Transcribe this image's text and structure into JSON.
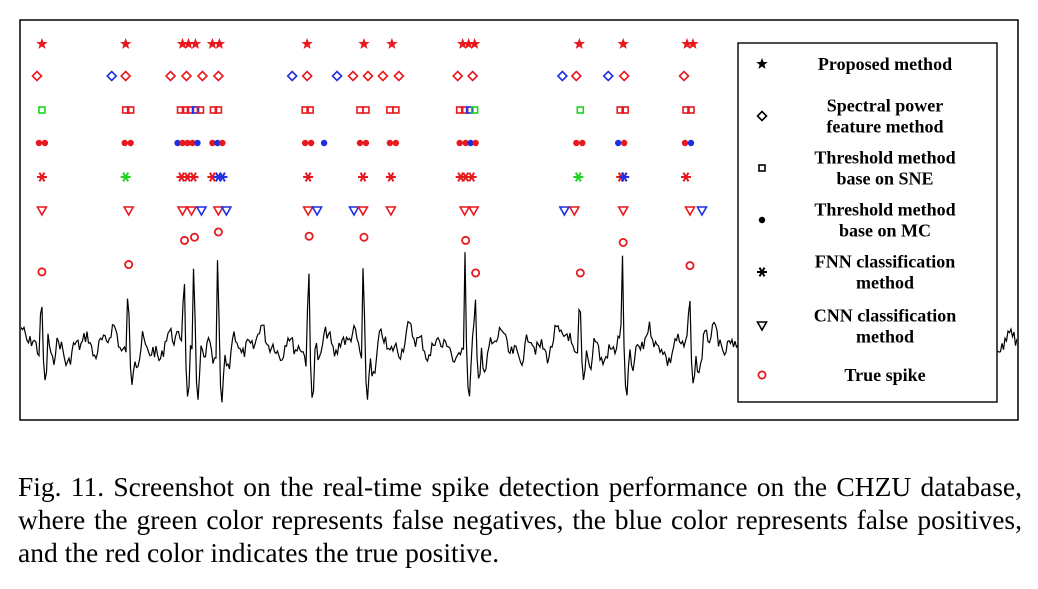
{
  "caption": "Fig. 11.   Screenshot on the real-time spike detection performance on the CHZU database, where the green color represents false negatives, the blue color represents false positives, and the red color indicates the true positive.",
  "colors": {
    "true_positive": "#e8191e",
    "false_positive": "#1f2ee0",
    "false_negative": "#1fd21f",
    "signal": "#000000",
    "true_spike": "#e8191e"
  },
  "chart_data": {
    "type": "scatter",
    "x_unit": "sample index",
    "xlim": [
      0,
      1000
    ],
    "legend_position": "right",
    "legend": [
      {
        "label": "Proposed method",
        "marker": "star"
      },
      {
        "label": "Spectral power feature method",
        "marker": "diamond"
      },
      {
        "label": "Threshold method base on SNE",
        "marker": "square"
      },
      {
        "label": "Threshold method base on MC",
        "marker": "dot"
      },
      {
        "label": "FNN classification method",
        "marker": "asterisk"
      },
      {
        "label": "CNN classification method",
        "marker": "triangle-down"
      },
      {
        "label": "True spike",
        "marker": "circle"
      }
    ],
    "true_spikes": [
      {
        "x": 21,
        "amp": 0.62
      },
      {
        "x": 108,
        "amp": 0.69
      },
      {
        "x": 164,
        "amp": 0.92
      },
      {
        "x": 174,
        "amp": 0.95
      },
      {
        "x": 198,
        "amp": 1.0
      },
      {
        "x": 289,
        "amp": 0.96
      },
      {
        "x": 344,
        "amp": 0.95
      },
      {
        "x": 446,
        "amp": 0.92
      },
      {
        "x": 456,
        "amp": 0.61
      },
      {
        "x": 561,
        "amp": 0.61
      },
      {
        "x": 604,
        "amp": 0.9
      },
      {
        "x": 671,
        "amp": 0.68
      }
    ],
    "series": [
      {
        "name": "Proposed method",
        "marker": "star",
        "detections": [
          {
            "x": 21,
            "c": "tp"
          },
          {
            "x": 105,
            "c": "tp"
          },
          {
            "x": 162,
            "c": "tp"
          },
          {
            "x": 168,
            "c": "tp"
          },
          {
            "x": 175,
            "c": "tp"
          },
          {
            "x": 192,
            "c": "tp"
          },
          {
            "x": 199,
            "c": "tp"
          },
          {
            "x": 287,
            "c": "tp"
          },
          {
            "x": 344,
            "c": "tp"
          },
          {
            "x": 372,
            "c": "tp"
          },
          {
            "x": 443,
            "c": "tp"
          },
          {
            "x": 449,
            "c": "tp"
          },
          {
            "x": 455,
            "c": "tp"
          },
          {
            "x": 560,
            "c": "tp"
          },
          {
            "x": 604,
            "c": "tp"
          },
          {
            "x": 668,
            "c": "tp"
          },
          {
            "x": 674,
            "c": "tp"
          }
        ]
      },
      {
        "name": "Spectral power feature method",
        "marker": "diamond",
        "detections": [
          {
            "x": 16,
            "c": "tp"
          },
          {
            "x": 91,
            "c": "fp"
          },
          {
            "x": 105,
            "c": "tp"
          },
          {
            "x": 150,
            "c": "tp"
          },
          {
            "x": 166,
            "c": "tp"
          },
          {
            "x": 182,
            "c": "tp"
          },
          {
            "x": 198,
            "c": "tp"
          },
          {
            "x": 272,
            "c": "fp"
          },
          {
            "x": 287,
            "c": "tp"
          },
          {
            "x": 317,
            "c": "fp"
          },
          {
            "x": 333,
            "c": "tp"
          },
          {
            "x": 348,
            "c": "tp"
          },
          {
            "x": 363,
            "c": "tp"
          },
          {
            "x": 379,
            "c": "tp"
          },
          {
            "x": 438,
            "c": "tp"
          },
          {
            "x": 453,
            "c": "tp"
          },
          {
            "x": 543,
            "c": "fp"
          },
          {
            "x": 557,
            "c": "tp"
          },
          {
            "x": 589,
            "c": "fp"
          },
          {
            "x": 605,
            "c": "tp"
          },
          {
            "x": 665,
            "c": "tp"
          }
        ]
      },
      {
        "name": "Threshold method base on SNE",
        "marker": "square",
        "detections": [
          {
            "x": 21,
            "c": "fn"
          },
          {
            "x": 105,
            "c": "tp"
          },
          {
            "x": 110,
            "c": "tp"
          },
          {
            "x": 160,
            "c": "tp"
          },
          {
            "x": 165,
            "c": "tp"
          },
          {
            "x": 170,
            "c": "tp"
          },
          {
            "x": 175,
            "c": "fp"
          },
          {
            "x": 180,
            "c": "tp"
          },
          {
            "x": 193,
            "c": "tp"
          },
          {
            "x": 198,
            "c": "tp"
          },
          {
            "x": 285,
            "c": "tp"
          },
          {
            "x": 290,
            "c": "tp"
          },
          {
            "x": 340,
            "c": "tp"
          },
          {
            "x": 346,
            "c": "tp"
          },
          {
            "x": 370,
            "c": "tp"
          },
          {
            "x": 376,
            "c": "tp"
          },
          {
            "x": 440,
            "c": "tp"
          },
          {
            "x": 445,
            "c": "tp"
          },
          {
            "x": 450,
            "c": "fp"
          },
          {
            "x": 455,
            "c": "fn"
          },
          {
            "x": 561,
            "c": "fn"
          },
          {
            "x": 601,
            "c": "tp"
          },
          {
            "x": 606,
            "c": "tp"
          },
          {
            "x": 667,
            "c": "tp"
          },
          {
            "x": 672,
            "c": "tp"
          }
        ]
      },
      {
        "name": "Threshold method base on MC",
        "marker": "dot",
        "detections": [
          {
            "x": 18,
            "c": "tp"
          },
          {
            "x": 24,
            "c": "tp"
          },
          {
            "x": 104,
            "c": "tp"
          },
          {
            "x": 110,
            "c": "tp"
          },
          {
            "x": 157,
            "c": "fp"
          },
          {
            "x": 162,
            "c": "tp"
          },
          {
            "x": 167,
            "c": "tp"
          },
          {
            "x": 172,
            "c": "tp"
          },
          {
            "x": 177,
            "c": "fp"
          },
          {
            "x": 192,
            "c": "tp"
          },
          {
            "x": 197,
            "c": "fp"
          },
          {
            "x": 202,
            "c": "tp"
          },
          {
            "x": 285,
            "c": "tp"
          },
          {
            "x": 291,
            "c": "tp"
          },
          {
            "x": 304,
            "c": "fp"
          },
          {
            "x": 340,
            "c": "tp"
          },
          {
            "x": 346,
            "c": "tp"
          },
          {
            "x": 370,
            "c": "tp"
          },
          {
            "x": 376,
            "c": "tp"
          },
          {
            "x": 440,
            "c": "tp"
          },
          {
            "x": 446,
            "c": "tp"
          },
          {
            "x": 451,
            "c": "fp"
          },
          {
            "x": 456,
            "c": "tp"
          },
          {
            "x": 557,
            "c": "tp"
          },
          {
            "x": 563,
            "c": "tp"
          },
          {
            "x": 599,
            "c": "fp"
          },
          {
            "x": 605,
            "c": "tp"
          },
          {
            "x": 666,
            "c": "tp"
          },
          {
            "x": 672,
            "c": "fp"
          }
        ]
      },
      {
        "name": "FNN classification method",
        "marker": "asterisk",
        "detections": [
          {
            "x": 21,
            "c": "tp"
          },
          {
            "x": 105,
            "c": "fn"
          },
          {
            "x": 161,
            "c": "tp"
          },
          {
            "x": 167,
            "c": "tp"
          },
          {
            "x": 173,
            "c": "tp"
          },
          {
            "x": 192,
            "c": "tp"
          },
          {
            "x": 198,
            "c": "fp"
          },
          {
            "x": 202,
            "c": "fp"
          },
          {
            "x": 288,
            "c": "tp"
          },
          {
            "x": 343,
            "c": "tp"
          },
          {
            "x": 371,
            "c": "tp"
          },
          {
            "x": 441,
            "c": "tp"
          },
          {
            "x": 446,
            "c": "tp"
          },
          {
            "x": 452,
            "c": "tp"
          },
          {
            "x": 559,
            "c": "fn"
          },
          {
            "x": 602,
            "c": "tp"
          },
          {
            "x": 605,
            "c": "fp"
          },
          {
            "x": 667,
            "c": "tp"
          }
        ]
      },
      {
        "name": "CNN classification method",
        "marker": "triangle-down",
        "detections": [
          {
            "x": 21,
            "c": "tp"
          },
          {
            "x": 108,
            "c": "tp"
          },
          {
            "x": 162,
            "c": "tp"
          },
          {
            "x": 171,
            "c": "tp"
          },
          {
            "x": 181,
            "c": "fp"
          },
          {
            "x": 198,
            "c": "tp"
          },
          {
            "x": 206,
            "c": "fp"
          },
          {
            "x": 288,
            "c": "tp"
          },
          {
            "x": 297,
            "c": "fp"
          },
          {
            "x": 334,
            "c": "fp"
          },
          {
            "x": 343,
            "c": "tp"
          },
          {
            "x": 371,
            "c": "tp"
          },
          {
            "x": 445,
            "c": "tp"
          },
          {
            "x": 454,
            "c": "tp"
          },
          {
            "x": 545,
            "c": "fp"
          },
          {
            "x": 555,
            "c": "tp"
          },
          {
            "x": 604,
            "c": "tp"
          },
          {
            "x": 671,
            "c": "tp"
          },
          {
            "x": 683,
            "c": "fp"
          }
        ]
      }
    ]
  }
}
